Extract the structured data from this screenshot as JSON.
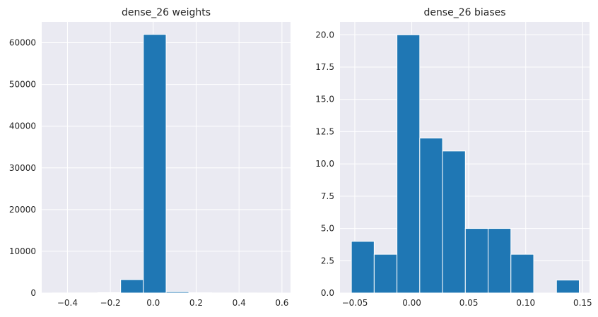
{
  "chart_data": [
    {
      "type": "bar",
      "title": "dense_26 weights",
      "xlabel": "",
      "ylabel": "",
      "grid": true,
      "xlim": [
        -0.52,
        0.64
      ],
      "ylim": [
        0,
        65000
      ],
      "x_ticks": [
        -0.4,
        -0.2,
        0.0,
        0.2,
        0.4,
        0.6
      ],
      "x_tick_labels": [
        "−0.4",
        "−0.2",
        "0.0",
        "0.2",
        "0.4",
        "0.6"
      ],
      "y_ticks": [
        0,
        10000,
        20000,
        30000,
        40000,
        50000,
        60000
      ],
      "y_tick_labels": [
        "0",
        "10000",
        "20000",
        "30000",
        "40000",
        "50000",
        "60000"
      ],
      "bin_edges": [
        -0.47,
        -0.364,
        -0.258,
        -0.152,
        -0.046,
        0.06,
        0.166,
        0.272,
        0.378,
        0.484,
        0.59
      ],
      "counts": [
        8,
        25,
        90,
        3200,
        62000,
        300,
        60,
        20,
        10,
        5
      ],
      "color": "#1f77b4"
    },
    {
      "type": "bar",
      "title": "dense_26 biases",
      "xlabel": "",
      "ylabel": "",
      "grid": true,
      "xlim": [
        -0.063,
        0.156
      ],
      "ylim": [
        0,
        21
      ],
      "x_ticks": [
        -0.05,
        0.0,
        0.05,
        0.1,
        0.15
      ],
      "x_tick_labels": [
        "−0.05",
        "0.00",
        "0.05",
        "0.10",
        "0.15"
      ],
      "y_ticks": [
        0,
        2.5,
        5.0,
        7.5,
        10.0,
        12.5,
        15.0,
        17.5,
        20.0
      ],
      "y_tick_labels": [
        "0.0",
        "2.5",
        "5.0",
        "7.5",
        "10.0",
        "12.5",
        "15.0",
        "17.5",
        "20.0"
      ],
      "bin_edges": [
        -0.053,
        -0.033,
        -0.013,
        0.007,
        0.027,
        0.047,
        0.067,
        0.087,
        0.107,
        0.127,
        0.147
      ],
      "counts": [
        4,
        3,
        20,
        12,
        11,
        5,
        5,
        3,
        0,
        1
      ],
      "color": "#1f77b4"
    }
  ]
}
